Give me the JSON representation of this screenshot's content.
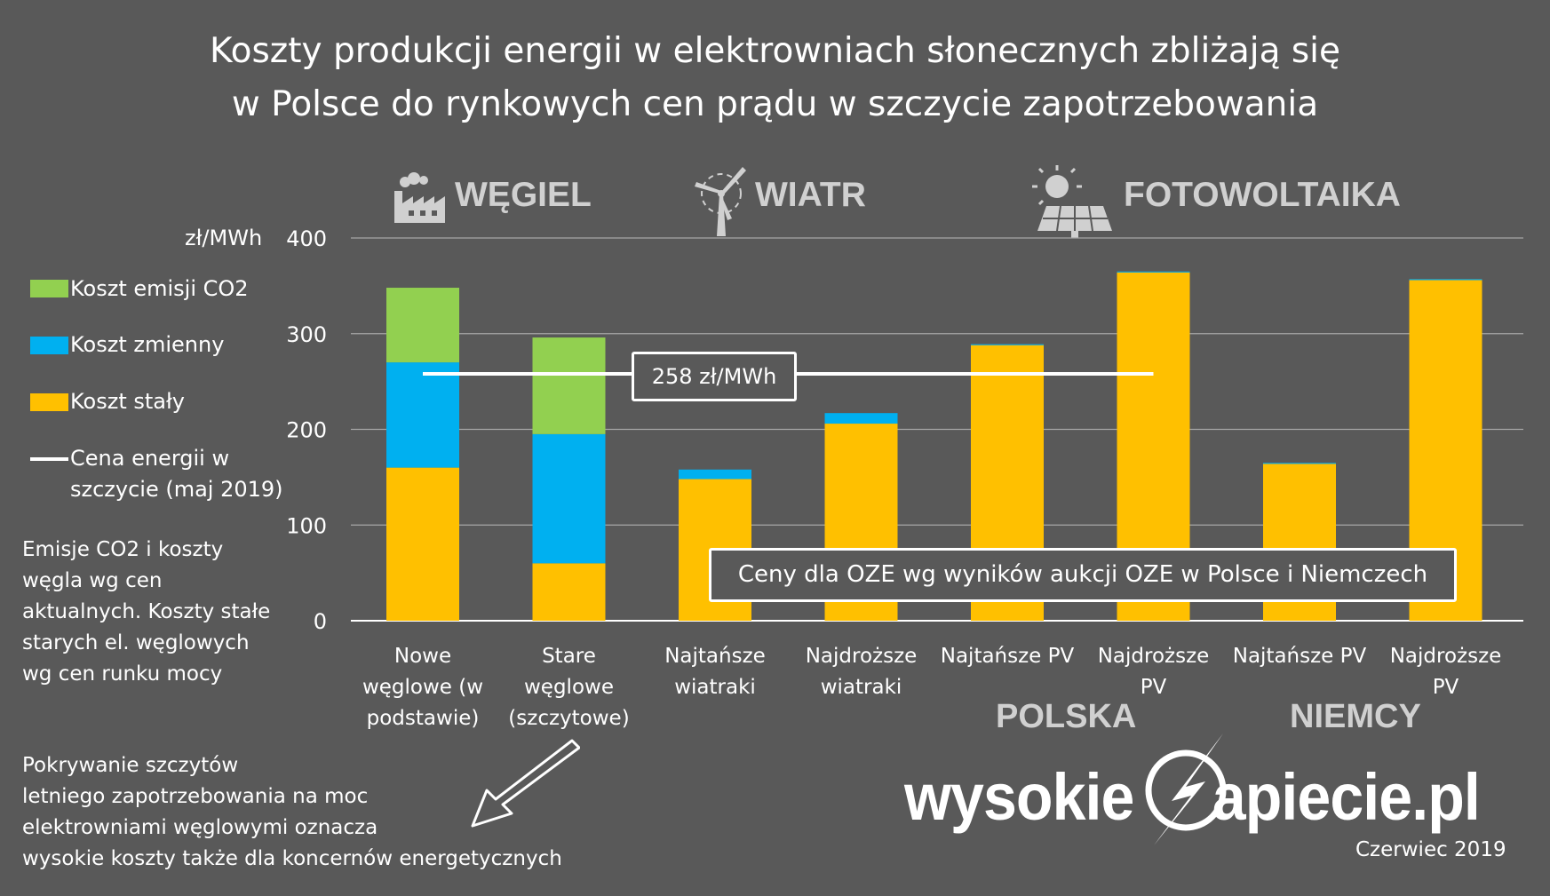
{
  "title_lines": [
    "Koszty produkcji energii w elektrowniach słonecznych zbliżają się",
    "w Polsce do rynkowych cen prądu w szczycie zapotrzebowania"
  ],
  "categories_header": {
    "coal": "WĘGIEL",
    "wind": "WIATR",
    "pv": "FOTOWOLTAIKA"
  },
  "icons": {
    "coal": "factory-icon",
    "wind": "wind-turbine-icon",
    "pv": "solar-panel-icon"
  },
  "unit_label": "zł/MWh",
  "legend": [
    {
      "label": "Koszt emisji CO2",
      "color": "#92d050"
    },
    {
      "label": "Koszt zmienny",
      "color": "#00b0f0"
    },
    {
      "label": "Koszt stały",
      "color": "#ffc000"
    },
    {
      "label_lines": [
        "Cena energii w",
        "szczycie (maj 2019)"
      ],
      "color": "#ffffff"
    }
  ],
  "side_note_lines": [
    "Emisje CO2 i koszty",
    "węgla wg cen",
    "aktualnych. Koszty stałe",
    "starych el. węglowych",
    "wg cen runku mocy"
  ],
  "bottom_note_lines": [
    "Pokrywanie szczytów",
    "letniego zapotrzebowania na moc",
    "elektrowniami węglowymi oznacza",
    "wysokie koszty także dla koncernów energetycznych"
  ],
  "countries": {
    "poland": "POLSKA",
    "germany": "NIEMCY"
  },
  "price_line_label": "258 zł/MWh",
  "oze_box_label": "Ceny dla OZE wg wyników aukcji OZE w Polsce i Niemczech",
  "brand": {
    "left": "wysokie",
    "right": "apiecie.pl"
  },
  "date": "Czerwiec 2019",
  "chart_data": {
    "type": "bar",
    "stacked": true,
    "ylim": [
      0,
      400
    ],
    "yticks": [
      0,
      100,
      200,
      300,
      400
    ],
    "ylabel": "zł/MWh",
    "grid": true,
    "categories": [
      [
        "Nowe",
        "węglowe (w",
        "podstawie)"
      ],
      [
        "Stare",
        "węglowe",
        "(szczytowe)"
      ],
      [
        "Najtańsze",
        "wiatraki"
      ],
      [
        "Najdroższe",
        "wiatraki"
      ],
      [
        "Najtańsze PV"
      ],
      [
        "Najdroższe",
        "PV"
      ],
      [
        "Najtańsze PV"
      ],
      [
        "Najdroższe",
        "PV"
      ]
    ],
    "series": [
      {
        "name": "Koszt stały",
        "color": "#ffc000",
        "values": [
          160,
          60,
          148,
          206,
          288,
          364,
          164,
          356
        ]
      },
      {
        "name": "Koszt zmienny",
        "color": "#00b0f0",
        "values": [
          110,
          135,
          10,
          11,
          1,
          1,
          1,
          1
        ]
      },
      {
        "name": "Koszt emisji CO2",
        "color": "#92d050",
        "values": [
          78,
          101,
          0,
          0,
          0,
          0,
          0,
          0
        ]
      }
    ],
    "reference_line": {
      "name": "Cena energii w szczycie (maj 2019)",
      "value": 258,
      "from_category": 0,
      "to_category": 5
    }
  }
}
